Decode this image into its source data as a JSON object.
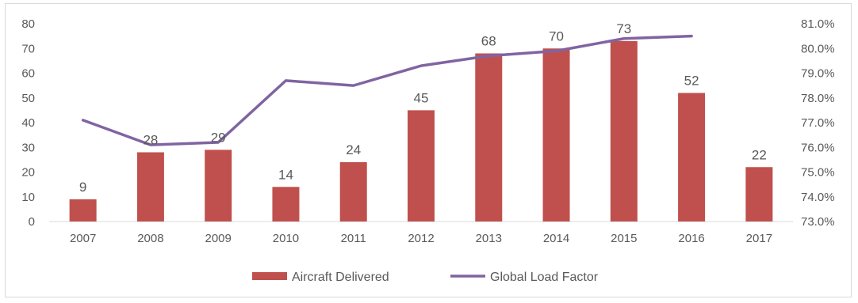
{
  "chart_data": {
    "type": "bar",
    "categories": [
      "2007",
      "2008",
      "2009",
      "2010",
      "2011",
      "2012",
      "2013",
      "2014",
      "2015",
      "2016",
      "2017"
    ],
    "series": [
      {
        "name": "Aircraft Delivered",
        "type": "bar",
        "axis": "left",
        "color": "#c0504d",
        "values": [
          9,
          28,
          29,
          14,
          24,
          45,
          68,
          70,
          73,
          52,
          22
        ],
        "data_labels": [
          "9",
          "28",
          "29",
          "14",
          "24",
          "45",
          "68",
          "70",
          "73",
          "52",
          "22"
        ]
      },
      {
        "name": "Global Load Factor",
        "type": "line",
        "axis": "right",
        "color": "#8064a2",
        "values": [
          77.1,
          76.1,
          76.2,
          78.7,
          78.5,
          79.3,
          79.7,
          79.9,
          80.4,
          80.5,
          null
        ]
      }
    ],
    "left_axis": {
      "ylim": [
        0,
        80
      ],
      "ticks": [
        0,
        10,
        20,
        30,
        40,
        50,
        60,
        70,
        80
      ],
      "tick_labels": [
        "0",
        "10",
        "20",
        "30",
        "40",
        "50",
        "60",
        "70",
        "80"
      ]
    },
    "right_axis": {
      "ylim": [
        73.0,
        81.0
      ],
      "ticks": [
        73,
        74,
        75,
        76,
        77,
        78,
        79,
        80,
        81
      ],
      "tick_labels": [
        "73.0%",
        "74.0%",
        "75.0%",
        "76.0%",
        "77.0%",
        "78.0%",
        "79.0%",
        "80.0%",
        "81.0%"
      ]
    },
    "grid": false,
    "legend_position": "bottom",
    "title": "",
    "xlabel": "",
    "ylabel": ""
  }
}
